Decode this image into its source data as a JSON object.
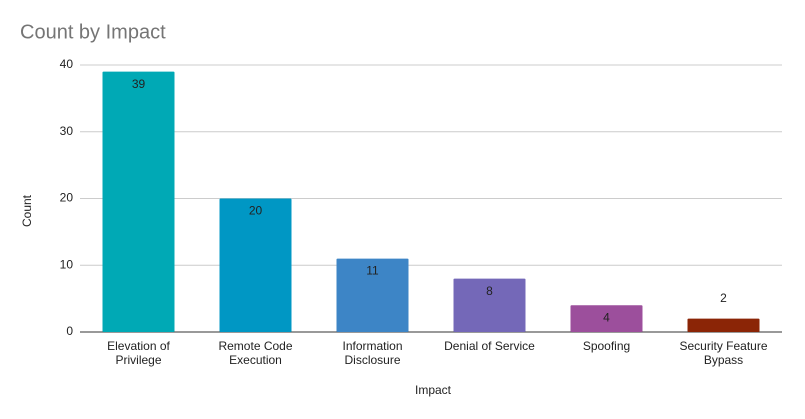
{
  "chart_data": {
    "type": "bar",
    "title": "Count by Impact",
    "x_label": "Impact",
    "y_label": "Count",
    "categories": [
      "Elevation of Privilege",
      "Remote Code Execution",
      "Information Disclosure",
      "Denial of Service",
      "Spoofing",
      "Security Feature Bypass"
    ],
    "values": [
      39,
      20,
      11,
      8,
      4,
      2
    ],
    "colors": [
      "#00a9b5",
      "#0097c4",
      "#3d85c6",
      "#7468b8",
      "#9c4f9c",
      "#8b2506"
    ],
    "ylim": [
      0,
      40
    ],
    "yticks": [
      0,
      10,
      20,
      30,
      40
    ],
    "grid": true,
    "show_value_labels": true
  }
}
